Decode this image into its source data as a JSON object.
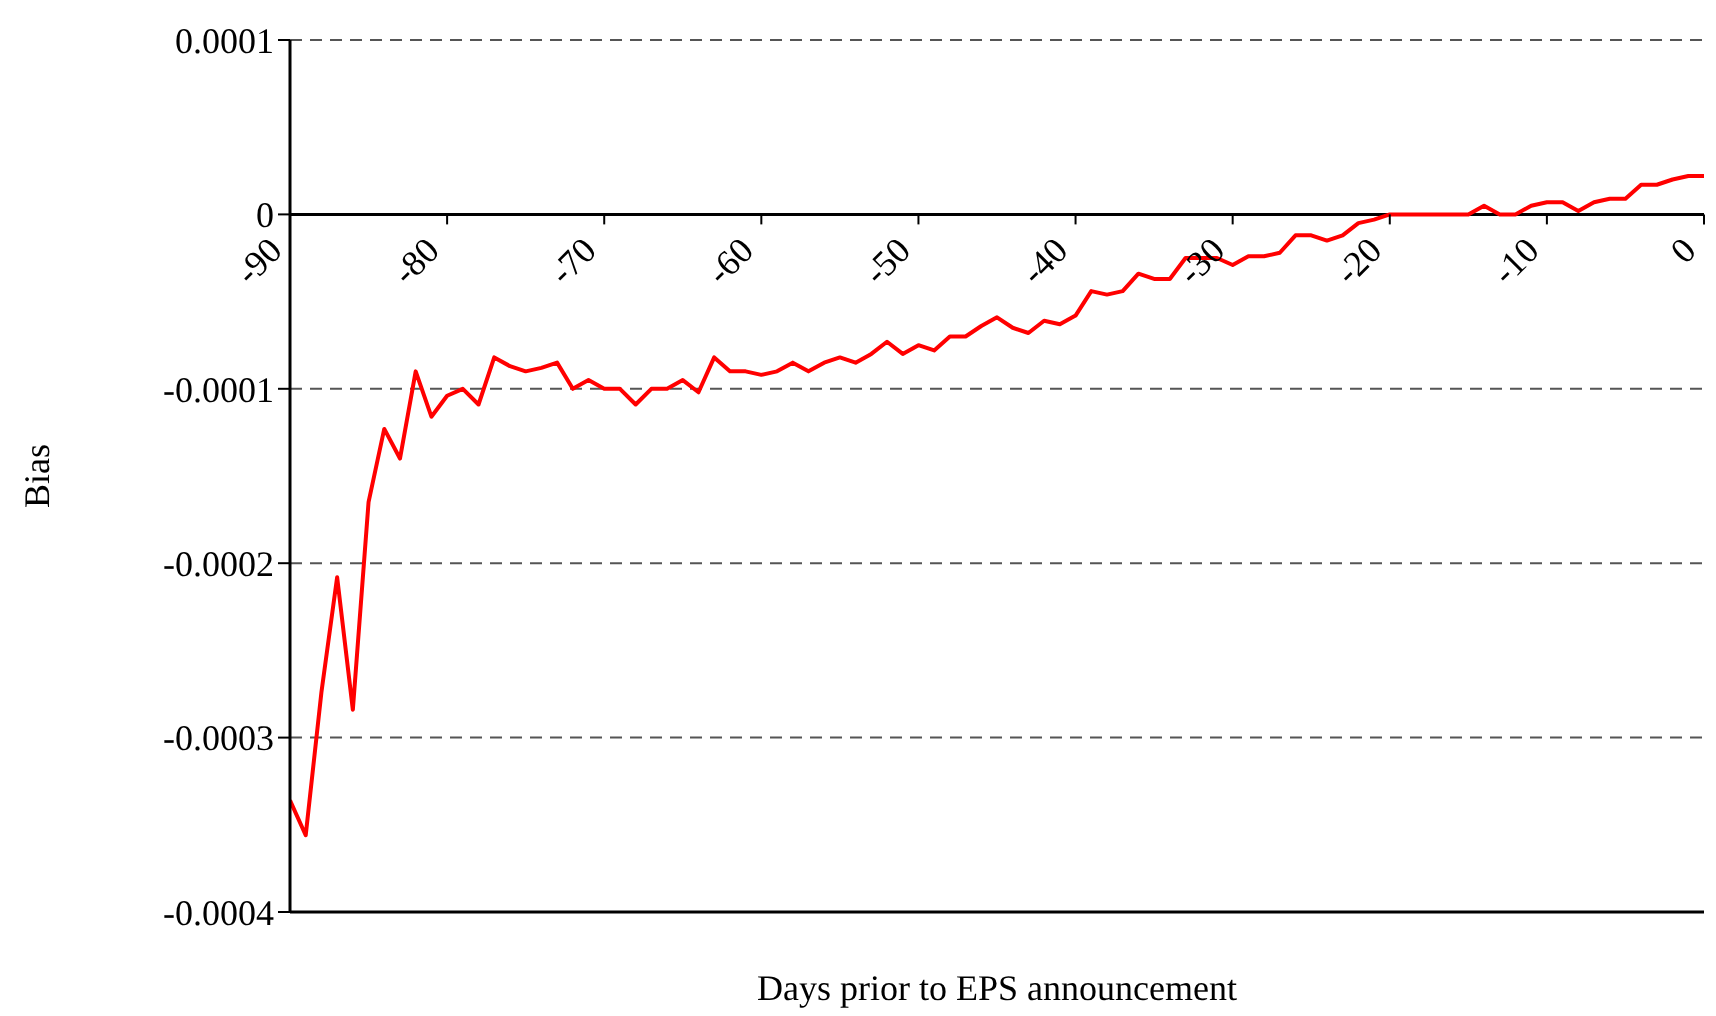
{
  "chart_data": {
    "type": "line",
    "xlabel": "Days prior to EPS announcement",
    "ylabel": "Bias",
    "x": [
      -90,
      -89,
      -88,
      -87,
      -86,
      -85,
      -84,
      -83,
      -82,
      -81,
      -80,
      -79,
      -78,
      -77,
      -76,
      -75,
      -74,
      -73,
      -72,
      -71,
      -70,
      -69,
      -68,
      -67,
      -66,
      -65,
      -64,
      -63,
      -62,
      -61,
      -60,
      -59,
      -58,
      -57,
      -56,
      -55,
      -54,
      -53,
      -52,
      -51,
      -50,
      -49,
      -48,
      -47,
      -46,
      -45,
      -44,
      -43,
      -42,
      -41,
      -40,
      -39,
      -38,
      -37,
      -36,
      -35,
      -34,
      -33,
      -32,
      -31,
      -30,
      -29,
      -28,
      -27,
      -26,
      -25,
      -24,
      -23,
      -22,
      -21,
      -20,
      -19,
      -18,
      -17,
      -16,
      -15,
      -14,
      -13,
      -12,
      -11,
      -10,
      -9,
      -8,
      -7,
      -6,
      -5,
      -4,
      -3,
      -2,
      -1,
      0
    ],
    "series": [
      {
        "color": "#ff0000",
        "values": [
          -0.000336,
          -0.000356,
          -0.000274,
          -0.000208,
          -0.000284,
          -0.000165,
          -0.000123,
          -0.00014,
          -9e-05,
          -0.000116,
          -0.000104,
          -0.0001,
          -0.000109,
          -8.2e-05,
          -8.7e-05,
          -9e-05,
          -8.8e-05,
          -8.5e-05,
          -0.0001,
          -9.5e-05,
          -0.0001,
          -0.0001,
          -0.000109,
          -0.0001,
          -0.0001,
          -9.5e-05,
          -0.000102,
          -8.2e-05,
          -9e-05,
          -9e-05,
          -9.2e-05,
          -9e-05,
          -8.5e-05,
          -9e-05,
          -8.5e-05,
          -8.2e-05,
          -8.5e-05,
          -8e-05,
          -7.3e-05,
          -8e-05,
          -7.5e-05,
          -7.8e-05,
          -7e-05,
          -7e-05,
          -6.4e-05,
          -5.9e-05,
          -6.5e-05,
          -6.8e-05,
          -6.1e-05,
          -6.3e-05,
          -5.8e-05,
          -4.4e-05,
          -4.6e-05,
          -4.4e-05,
          -3.4e-05,
          -3.7e-05,
          -3.7e-05,
          -2.5e-05,
          -2.5e-05,
          -2.5e-05,
          -2.9e-05,
          -2.4e-05,
          -2.4e-05,
          -2.2e-05,
          -1.2e-05,
          -1.2e-05,
          -1.5e-05,
          -1.2e-05,
          -5e-06,
          -3e-06,
          0,
          0,
          0,
          0,
          0,
          0,
          5e-06,
          0,
          0,
          5e-06,
          7e-06,
          7e-06,
          2e-06,
          7e-06,
          9e-06,
          9e-06,
          1.7e-05,
          1.7e-05,
          2e-05,
          2.2e-05,
          2.2e-05
        ]
      }
    ],
    "xlim": [
      -90,
      0
    ],
    "xticks": [
      -90,
      -80,
      -70,
      -60,
      -50,
      -40,
      -30,
      -20,
      -10,
      0
    ],
    "ylim": [
      -0.0004,
      0.0001
    ],
    "yticks": [
      -0.0004,
      -0.0003,
      -0.0002,
      -0.0001,
      0,
      0.0001
    ],
    "grid": "y",
    "marker": "none",
    "line_style": "solid"
  }
}
